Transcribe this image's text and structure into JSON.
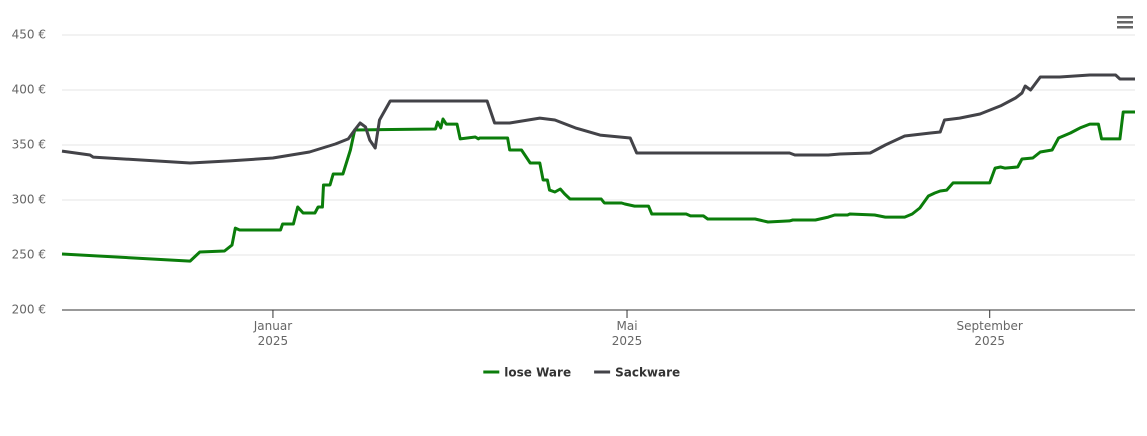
{
  "chart_data": {
    "type": "line",
    "xlim": [
      2024.804,
      2025.801
    ],
    "xticks": [
      {
        "value": 2025.0,
        "label": "Januar 2025"
      },
      {
        "value": 2025.329,
        "label": "Mai 2025"
      },
      {
        "value": 2025.666,
        "label": "September 2025"
      }
    ],
    "ylim": [
      200,
      450
    ],
    "yticks": [
      {
        "value": 200,
        "label": "200 €"
      },
      {
        "value": 250,
        "label": "250 €"
      },
      {
        "value": 300,
        "label": "300 €"
      },
      {
        "value": 350,
        "label": "350 €"
      },
      {
        "value": 400,
        "label": "400 €"
      },
      {
        "value": 450,
        "label": "450 €"
      }
    ],
    "grid": true,
    "legend": "bottom",
    "series": [
      {
        "name": "lose Ware",
        "color": "#0b7d0b",
        "x": [
          2024.804,
          2024.923,
          2024.932,
          2024.955,
          2024.962,
          2024.965,
          2024.969,
          2025.007,
          2025.009,
          2025.019,
          2025.023,
          2025.028,
          2025.039,
          2025.042,
          2025.046,
          2025.047,
          2025.053,
          2025.056,
          2025.065,
          2025.072,
          2025.076,
          2025.151,
          2025.153,
          2025.156,
          2025.158,
          2025.161,
          2025.171,
          2025.174,
          2025.188,
          2025.191,
          2025.192,
          2025.218,
          2025.22,
          2025.231,
          2025.239,
          2025.248,
          2025.251,
          2025.255,
          2025.257,
          2025.262,
          2025.267,
          2025.271,
          2025.276,
          2025.305,
          2025.308,
          2025.324,
          2025.327,
          2025.336,
          2025.349,
          2025.352,
          2025.384,
          2025.388,
          2025.4,
          2025.404,
          2025.448,
          2025.46,
          2025.48,
          2025.483,
          2025.504,
          2025.516,
          2025.522,
          2025.534,
          2025.536,
          2025.559,
          2025.569,
          2025.587,
          2025.594,
          2025.601,
          2025.609,
          2025.615,
          2025.62,
          2025.626,
          2025.632,
          2025.666,
          2025.671,
          2025.676,
          2025.68,
          2025.692,
          2025.696,
          2025.706,
          2025.713,
          2025.724,
          2025.73,
          2025.741,
          2025.75,
          2025.759,
          2025.767,
          2025.77,
          2025.787,
          2025.79,
          2025.801
        ],
        "values": [
          250.9,
          244.5,
          252.7,
          253.6,
          259,
          274.5,
          272.7,
          272.7,
          278.2,
          278.2,
          293.6,
          288.2,
          288.2,
          293.6,
          293.6,
          313.6,
          313.6,
          323.6,
          323.6,
          345.5,
          363.6,
          364.5,
          370.9,
          365.5,
          373.6,
          369,
          369,
          355.5,
          357.3,
          355.5,
          356.4,
          356.4,
          345.5,
          345.5,
          333.6,
          333.6,
          318.2,
          318.2,
          309,
          307.3,
          310,
          305.5,
          300.9,
          300.9,
          297.3,
          297.3,
          296.4,
          294.5,
          294.5,
          287.3,
          287.3,
          285.5,
          285.5,
          282.7,
          282.7,
          280,
          281,
          281.8,
          281.8,
          284.5,
          286.4,
          286.4,
          287.3,
          286.4,
          284.5,
          284.5,
          287.3,
          292.7,
          303.6,
          306.4,
          308.2,
          309,
          315.5,
          315.5,
          329,
          330,
          329,
          330,
          337.3,
          338.2,
          343.6,
          345.5,
          356.4,
          360.9,
          365.5,
          369,
          369,
          355.5,
          355.5,
          380,
          380
        ]
      },
      {
        "name": "Sackware",
        "color": "#434348",
        "x": [
          2024.804,
          2024.83,
          2024.833,
          2024.923,
          2024.96,
          2025.0,
          2025.034,
          2025.058,
          2025.07,
          2025.076,
          2025.081,
          2025.086,
          2025.09,
          2025.095,
          2025.099,
          2025.109,
          2025.199,
          2025.206,
          2025.22,
          2025.248,
          2025.262,
          2025.281,
          2025.304,
          2025.332,
          2025.338,
          2025.48,
          2025.485,
          2025.516,
          2025.527,
          2025.555,
          2025.569,
          2025.587,
          2025.611,
          2025.62,
          2025.624,
          2025.638,
          2025.657,
          2025.676,
          2025.69,
          2025.696,
          2025.699,
          2025.704,
          2025.713,
          2025.731,
          2025.759,
          2025.783,
          2025.787,
          2025.801
        ],
        "values": [
          344.5,
          340.9,
          339,
          333.6,
          335.5,
          338.2,
          343.6,
          350.9,
          355.5,
          363.6,
          370,
          366.4,
          354.5,
          347.3,
          372.7,
          390,
          390,
          370,
          370,
          374.5,
          372.7,
          365.5,
          359,
          356.4,
          342.7,
          342.7,
          340.9,
          340.9,
          341.8,
          342.7,
          350,
          358.2,
          360.9,
          361.8,
          372.7,
          374.5,
          378.2,
          385.5,
          392.7,
          397.3,
          403.6,
          400,
          411.8,
          411.8,
          413.6,
          413.6,
          410,
          410
        ]
      }
    ]
  }
}
